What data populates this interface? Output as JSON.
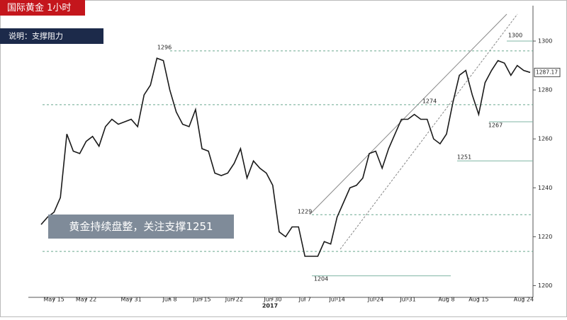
{
  "chart_data": {
    "type": "line",
    "title": "国际黄金  1小时",
    "subtitle": "说明：支撑阻力",
    "annotation": "黄金持续盘整，关注支撑1251",
    "year_label": "2017",
    "categories": [
      null,
      null,
      "May 15",
      null,
      null,
      null,
      null,
      "May 22",
      null,
      null,
      null,
      null,
      null,
      null,
      "May 31",
      null,
      null,
      null,
      null,
      null,
      "Jun 8",
      null,
      null,
      null,
      null,
      "Jun 15",
      null,
      null,
      null,
      null,
      "Jun 22",
      null,
      null,
      null,
      null,
      null,
      "Jun 30",
      null,
      null,
      null,
      null,
      "Jul 7",
      null,
      null,
      null,
      null,
      "Jul 14",
      null,
      null,
      null,
      null,
      null,
      "Jul 24",
      null,
      null,
      null,
      null,
      "Jul 31",
      null,
      null,
      null,
      null,
      null,
      "Aug 8",
      null,
      null,
      null,
      null,
      "Aug 15",
      null,
      null,
      null,
      null,
      null,
      null,
      "Aug 24",
      null
    ],
    "series": [
      {
        "color": "#1a1a1a",
        "values": [
          1225,
          1228,
          1230,
          1236,
          1262,
          1255,
          1254,
          1259,
          1261,
          1257,
          1265,
          1268,
          1266,
          1267,
          1268,
          1265,
          1278,
          1282,
          1293,
          1292,
          1280,
          1271,
          1266,
          1265,
          1272,
          1256,
          1255,
          1246,
          1245,
          1246,
          1250,
          1256,
          1244,
          1251,
          1248,
          1246,
          1241,
          1222,
          1220,
          1224,
          1224,
          1212,
          1212,
          1212,
          1218,
          1217,
          1228,
          1234,
          1240,
          1241,
          1244,
          1254,
          1255,
          1248,
          1256,
          1262,
          1268,
          1268,
          1270,
          1268,
          1268,
          1260,
          1258,
          1262,
          1275,
          1286,
          1288,
          1278,
          1270,
          1283,
          1288,
          1292,
          1291,
          1286,
          1290,
          1288,
          1287.17
        ]
      }
    ],
    "ylim": [
      1190,
      1311
    ],
    "yticks": [
      1200,
      1220,
      1240,
      1260,
      1280,
      1300
    ],
    "peak_labels": [
      1296,
      1229,
      1204,
      1274,
      1251,
      1267,
      1300
    ],
    "dashed_levels": [
      1296,
      1274,
      1229,
      1214
    ],
    "solid_levels": [
      1300,
      1267,
      1251,
      1204
    ],
    "last_price": 1287.17
  }
}
